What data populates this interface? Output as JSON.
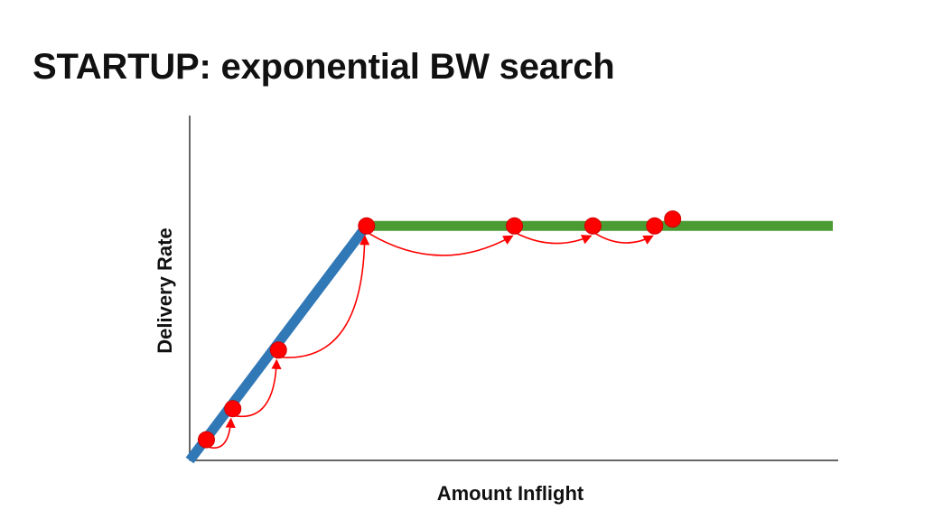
{
  "slide": {
    "title": "STARTUP: exponential BW search"
  },
  "chart_data": {
    "type": "line",
    "title": "",
    "xlabel": "Amount Inflight",
    "ylabel": "Delivery Rate",
    "xlim": [
      0,
      100
    ],
    "ylim": [
      0,
      100
    ],
    "grid": false,
    "tick_labels": "none",
    "series": [
      {
        "role": "rising",
        "color": "#3178b6",
        "x": [
          0,
          27.5
        ],
        "y": [
          0,
          68
        ]
      },
      {
        "role": "plateau",
        "color": "#4b9b33",
        "x": [
          27.5,
          100
        ],
        "y": [
          68,
          68
        ]
      }
    ],
    "probe_points": {
      "color": "#ff0000",
      "x": [
        2.6,
        6.7,
        13.8,
        27.5,
        50.5,
        62.7,
        72.3,
        75.1
      ],
      "y": [
        6,
        15,
        32,
        68,
        68,
        68,
        68,
        70
      ]
    },
    "arrows_color": "#ff0000",
    "arrows_between_points": [
      [
        0,
        1
      ],
      [
        1,
        2
      ],
      [
        2,
        3
      ],
      [
        3,
        4
      ],
      [
        4,
        5
      ],
      [
        5,
        6
      ]
    ],
    "axis_color": "#666666"
  }
}
